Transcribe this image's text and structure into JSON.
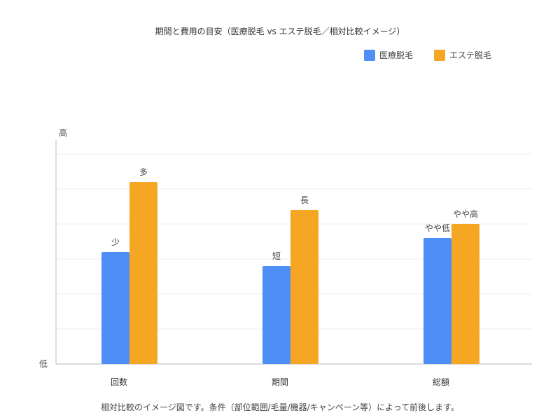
{
  "chart_data": {
    "type": "bar",
    "title": "期間と費用の目安（医療脱毛 vs エステ脱毛／相対比較イメージ）",
    "categories": [
      "回数",
      "期間",
      "総額"
    ],
    "y_axis": {
      "top_label": "高",
      "bottom_label": "低",
      "ylim": [
        0,
        6
      ],
      "grid": true
    },
    "series": [
      {
        "name": "医療脱毛",
        "color": "#4e8ef7",
        "values": [
          3.2,
          2.8,
          3.6
        ],
        "labels": [
          "少",
          "短",
          "やや低"
        ]
      },
      {
        "name": "エステ脱毛",
        "color": "#f5a623",
        "values": [
          5.2,
          4.4,
          4.0
        ],
        "labels": [
          "多",
          "長",
          "やや高"
        ]
      }
    ],
    "legend_position": "top-right"
  },
  "footnote": "相対比較のイメージ図です。条件（部位範囲/毛量/機器/キャンペーン等）によって前後します。"
}
